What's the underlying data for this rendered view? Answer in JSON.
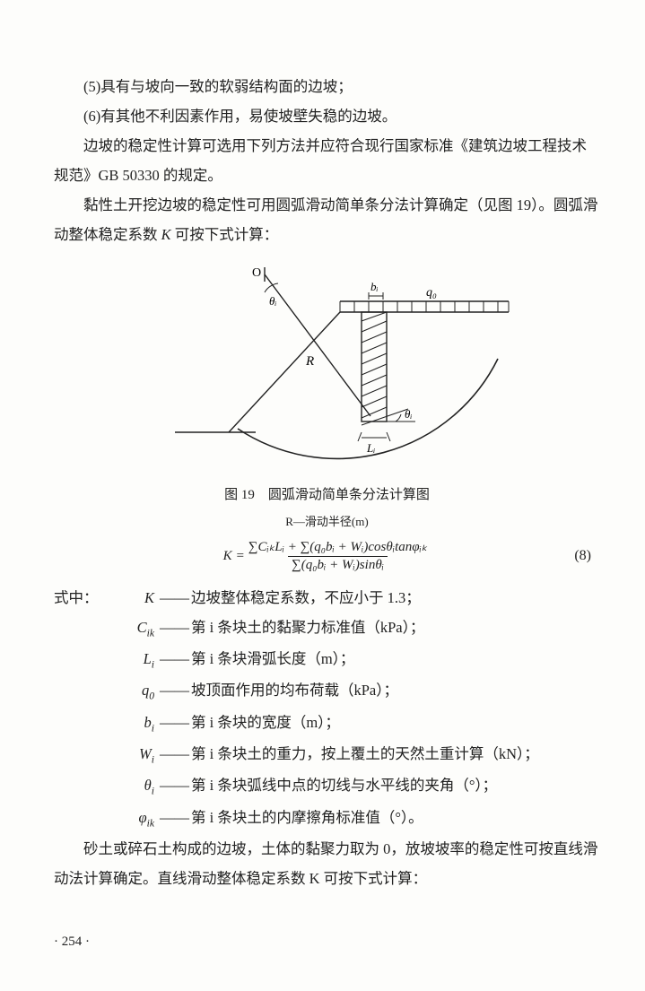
{
  "body": {
    "item5": "(5)具有与坡向一致的软弱结构面的边坡；",
    "item6": "(6)有其他不利因素作用，易使坡壁失稳的边坡。",
    "p1": "边坡的稳定性计算可选用下列方法并应符合现行国家标准《建筑边坡工程技术规范》GB 50330 的规定。",
    "p2a": "黏性土开挖边坡的稳定性可用圆弧滑动简单条分法计算确定（见图 19）。圆弧滑动整体稳定系数 ",
    "p2b": " 可按下式计算：",
    "p3a": "砂土或碎石土构成的边坡，土体的黏聚力取为 0，放坡坡率的稳定性可按直线滑动法计算确定。直线滑动整体稳定系数 K 可按下式计算："
  },
  "ksym": "K",
  "figure": {
    "caption": "图 19　圆弧滑动简单条分法计算图",
    "subcaption": "R—滑动半径(m)",
    "labels": {
      "O": "O",
      "theta_top": "θᵢ",
      "R": "R",
      "bi": "bᵢ",
      "q0": "q₀",
      "theta_bot": "θᵢ",
      "Li": "Lᵢ"
    },
    "stroke": "#222222",
    "hatch": "#222222",
    "bg": "#fdfdfb"
  },
  "equation": {
    "K": "K",
    "eq": "=",
    "num": "∑CᵢₖLᵢ + ∑(q₀bᵢ + Wᵢ)cosθᵢtanφᵢₖ",
    "den": "∑(q₀bᵢ + Wᵢ)sinθᵢ",
    "number": "(8)"
  },
  "where_lead": "式中：",
  "defs": [
    {
      "sym": "K",
      "txt": "边坡整体稳定系数，不应小于 1.3；"
    },
    {
      "sym": "Cik",
      "txt": "第 i 条块土的黏聚力标准值（kPa）；"
    },
    {
      "sym": "Li",
      "txt": "第 i 条块滑弧长度（m）；"
    },
    {
      "sym": "q0",
      "txt": "坡顶面作用的均布荷载（kPa）；"
    },
    {
      "sym": "bi",
      "txt": "第 i 条块的宽度（m）；"
    },
    {
      "sym": "Wi",
      "txt": "第 i 条块土的重力，按上覆土的天然土重计算（kN）；"
    },
    {
      "sym": "thi",
      "txt": "第 i 条块弧线中点的切线与水平线的夹角（°）；"
    },
    {
      "sym": "phik",
      "txt": "第 i 条块土的内摩擦角标准值（°）。"
    }
  ],
  "syms": {
    "K": "K",
    "Cik": "C<sub>ik</sub>",
    "Li": "L<sub>i</sub>",
    "q0": "q<sub>0</sub>",
    "bi": "b<sub>i</sub>",
    "Wi": "W<sub>i</sub>",
    "thi": "θ<sub>i</sub>",
    "phik": "φ<sub>ik</sub>"
  },
  "dash": "——",
  "pageno": "· 254 ·"
}
